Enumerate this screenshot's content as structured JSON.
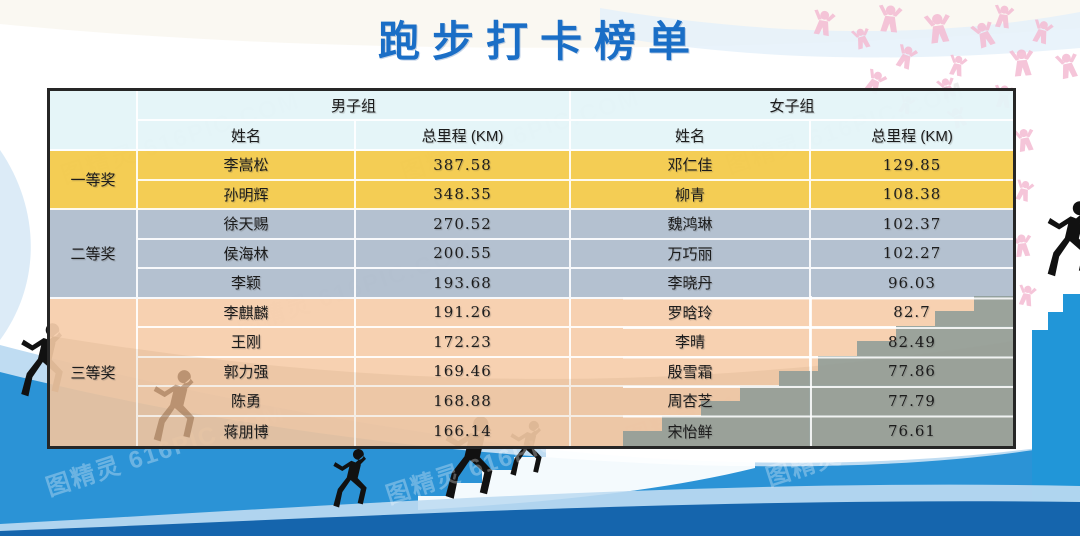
{
  "title": "跑步打卡榜单",
  "watermark": {
    "text": "图精灵 616PIC.COM"
  },
  "table": {
    "groups": [
      {
        "label": "男子组"
      },
      {
        "label": "女子组"
      }
    ],
    "columns": {
      "name": "姓名",
      "mileage": "总里程 (KM)"
    },
    "tiers": [
      {
        "label": "一等奖",
        "bg": "rgba(243,202,73,0.94)",
        "rows": [
          {
            "m_name": "李嵩松",
            "m_km": "387.58",
            "w_name": "邓仁佳",
            "w_km": "129.85"
          },
          {
            "m_name": "孙明辉",
            "m_km": "348.35",
            "w_name": "柳青",
            "w_km": "108.38"
          }
        ]
      },
      {
        "label": "二等奖",
        "bg": "rgba(174,188,204,0.93)",
        "rows": [
          {
            "m_name": "徐天赐",
            "m_km": "270.52",
            "w_name": "魏鸿琳",
            "w_km": "102.37"
          },
          {
            "m_name": "侯海林",
            "m_km": "200.55",
            "w_name": "万巧丽",
            "w_km": "102.27"
          },
          {
            "m_name": "李颖",
            "m_km": "193.68",
            "w_name": "李晓丹",
            "w_km": "96.03"
          }
        ]
      },
      {
        "label": "三等奖",
        "bg": "rgba(246,205,171,0.93)",
        "rows": [
          {
            "m_name": "李麒麟",
            "m_km": "191.26",
            "w_name": "罗晗玲",
            "w_km": "82.7"
          },
          {
            "m_name": "王刚",
            "m_km": "172.23",
            "w_name": "李晴",
            "w_km": "82.49"
          },
          {
            "m_name": "郭力强",
            "m_km": "169.46",
            "w_name": "殷雪霜",
            "w_km": "77.86"
          },
          {
            "m_name": "陈勇",
            "m_km": "168.88",
            "w_name": "周杏芝",
            "w_km": "77.79"
          },
          {
            "m_name": "蒋朋博",
            "m_km": "166.14",
            "w_name": "宋怡鲜",
            "w_km": "76.61"
          }
        ]
      }
    ]
  },
  "colors": {
    "title_blue": "#1A6EC6",
    "first_prize": "#F3CA49",
    "second_prize": "#AEBCCC",
    "third_prize": "#F6CDAB",
    "header_bg": "#E4F4F8",
    "wave_bright_blue": "#2B93D6",
    "wave_light_blue": "#BFDCF2",
    "wave_dark_blue": "#1565AD",
    "stair_gray": "#8E9C97",
    "crowd_pink": "#F4BBD3",
    "border_dark": "#262626"
  }
}
